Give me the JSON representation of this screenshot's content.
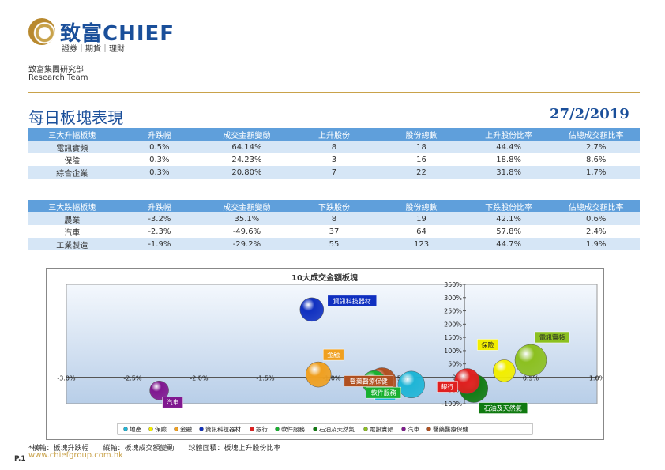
{
  "header": {
    "brand": "致富CHIEF",
    "tagline": "證券｜期貨｜理財",
    "dept": "致富集團研究部",
    "team": "Research Team"
  },
  "title": "每日板塊表現",
  "date": "27/2/2019",
  "rise_table": {
    "headers": [
      "三大升幅板塊",
      "升跌幅",
      "成交金額變動",
      "上升股份",
      "股份總數",
      "上升股份比率",
      "佔總成交額比率"
    ],
    "rows": [
      [
        "電訊實頻",
        "0.5%",
        "64.14%",
        "8",
        "18",
        "44.4%",
        "2.7%"
      ],
      [
        "保險",
        "0.3%",
        "24.23%",
        "3",
        "16",
        "18.8%",
        "8.6%"
      ],
      [
        "綜合企業",
        "0.3%",
        "20.80%",
        "7",
        "22",
        "31.8%",
        "1.7%"
      ]
    ]
  },
  "fall_table": {
    "headers": [
      "三大跌幅板塊",
      "升跌幅",
      "成交金額變動",
      "下跌股份",
      "股份總數",
      "下跌股份比率",
      "佔總成交額比率"
    ],
    "rows": [
      [
        "農業",
        "-3.2%",
        "35.1%",
        "8",
        "19",
        "42.1%",
        "0.6%"
      ],
      [
        "汽車",
        "-2.3%",
        "-49.6%",
        "37",
        "64",
        "57.8%",
        "2.4%"
      ],
      [
        "工業製造",
        "-1.9%",
        "-29.2%",
        "55",
        "123",
        "44.7%",
        "1.9%"
      ]
    ]
  },
  "chart_data": {
    "type": "scatter",
    "title": "10大成交金額板塊",
    "xlim": [
      -3.0,
      1.0
    ],
    "ylim": [
      -100,
      350
    ],
    "x_ticks": [
      "-3.0%",
      "-2.5%",
      "-2.0%",
      "-1.5%",
      "-1.0%",
      "-0.5%",
      "0.0%",
      "0.5%",
      "1.0%"
    ],
    "y_ticks": [
      "-100%",
      "-50%",
      "0%",
      "50%",
      "100%",
      "150%",
      "200%",
      "250%",
      "300%",
      "350%"
    ],
    "series": [
      {
        "name": "地產",
        "x": -0.4,
        "y": -28,
        "size": 17,
        "color": "#1fb5d6"
      },
      {
        "name": "保險",
        "x": 0.3,
        "y": 24,
        "size": 14,
        "color": "#f2ee00"
      },
      {
        "name": "金融",
        "x": -1.1,
        "y": 10,
        "size": 16,
        "color": "#f0a020"
      },
      {
        "name": "資訊科技器材",
        "x": -1.15,
        "y": 255,
        "size": 15,
        "color": "#1030c0"
      },
      {
        "name": "銀行",
        "x": 0.02,
        "y": -15,
        "size": 16,
        "color": "#e02020"
      },
      {
        "name": "軟件服務",
        "x": -0.68,
        "y": -20,
        "size": 15,
        "color": "#18b030"
      },
      {
        "name": "石油及天然氣",
        "x": 0.07,
        "y": -42,
        "size": 18,
        "color": "#107a10"
      },
      {
        "name": "電訊實頻",
        "x": 0.5,
        "y": 64,
        "size": 20,
        "color": "#8cc020"
      },
      {
        "name": "汽車",
        "x": -2.3,
        "y": -50,
        "size": 12,
        "color": "#801890"
      },
      {
        "name": "醫藥醫療保健",
        "x": -0.62,
        "y": -18,
        "size": 18,
        "color": "#b05020"
      }
    ],
    "labels": [
      {
        "text": "資訊科技器材",
        "color": "#1030c0",
        "series": 3
      },
      {
        "text": "電訊實頻",
        "color": "#8cc020",
        "series": 7
      },
      {
        "text": "保險",
        "color": "#f2ee00",
        "series": 1
      },
      {
        "text": "金融",
        "color": "#f0a020",
        "series": 2
      },
      {
        "text": "醫藥醫療保健",
        "color": "#b05020",
        "series": 9
      },
      {
        "text": "銀行",
        "color": "#e02020",
        "series": 4
      },
      {
        "text": "汽車",
        "color": "#801890",
        "series": 8
      },
      {
        "text": "地產",
        "color": "#1fb5d6",
        "series": 0
      },
      {
        "text": "軟件服務",
        "color": "#18b030",
        "series": 5
      },
      {
        "text": "石油及天然氣",
        "color": "#107a10",
        "series": 6
      }
    ]
  },
  "footnote": "*橫軸：板塊升跌幅　　縱軸：板塊成交額變動　　球體面積：板塊上升股份比率",
  "url": "www.chiefgroup.com.hk",
  "page": "P.1"
}
